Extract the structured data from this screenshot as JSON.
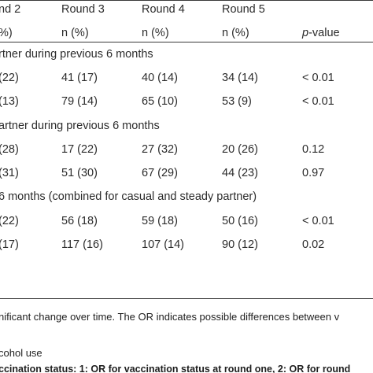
{
  "header_row1": [
    "nd 2",
    "Round 3",
    "Round 4",
    "Round 5"
  ],
  "header_row2": [
    "%)",
    "n (%)",
    "n (%)",
    "n (%)"
  ],
  "pvalue_header": {
    "italic": "p",
    "rest": "-value"
  },
  "sections": [
    {
      "title": "rtner during previous 6 months",
      "rows": [
        [
          "(22)",
          "41 (17)",
          "40 (14)",
          "34 (14)",
          "< 0.01"
        ],
        [
          "(13)",
          "79 (14)",
          "65 (10)",
          "53 (9)",
          "< 0.01"
        ]
      ]
    },
    {
      "title": "artner during previous 6 months",
      "rows": [
        [
          "(28)",
          "17 (22)",
          "27 (32)",
          "20 (26)",
          "0.12"
        ],
        [
          "(31)",
          "51 (30)",
          "67 (29)",
          "44 (23)",
          "0.97"
        ]
      ]
    },
    {
      "title": "6 months (combined for casual and steady partner)",
      "rows": [
        [
          "(22)",
          "56 (18)",
          "59 (18)",
          "50 (16)",
          "< 0.01"
        ],
        [
          " (17)",
          "117 (16)",
          "107 (14)",
          "90 (12)",
          "0.02"
        ]
      ]
    }
  ],
  "footnote_line1": "nificant change over time. The OR indicates possible differences between v",
  "footnote_line2": "cohol use",
  "footnote_line3": "ccination status: 1: OR for vaccination status at round one, 2: OR for round"
}
